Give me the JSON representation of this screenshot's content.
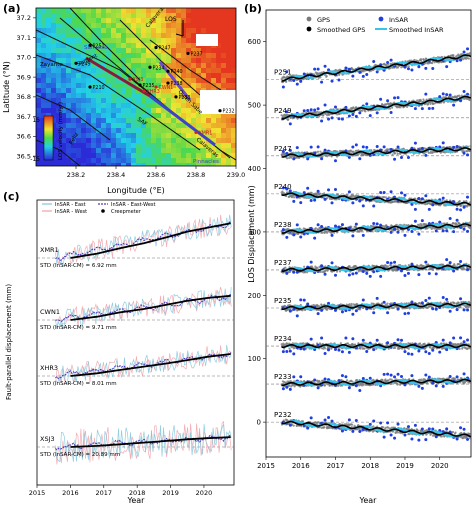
{
  "panels": {
    "a": {
      "label": "(a)",
      "xlabel": "Longitude (°E)",
      "ylabel": "Latitude (°N)",
      "xticks": [
        "238.2",
        "238.4",
        "238.6",
        "238.8",
        "239.0"
      ],
      "yticks": [
        "37.2",
        "37.1",
        "37.0",
        "36.9",
        "36.8",
        "36.7",
        "36.6",
        "36.5"
      ],
      "colorbar_label": "LOS velocity (mm/yr)",
      "colorbar_ticks": [
        "-15",
        "15"
      ],
      "los_label": "LOS",
      "fault_labels": [
        "Calaveras",
        "San Jose",
        "Sargent",
        "Zayante",
        "Quien Sabe",
        "SAF",
        "Reliz",
        "Calaveras"
      ],
      "stations": [
        "P251",
        "P249",
        "P247",
        "P240",
        "P238",
        "P237",
        "P235",
        "P234",
        "P233",
        "P232",
        "P210",
        "XMR1",
        "CWN1",
        "XHR3",
        "XSJ3",
        "Pinnacles"
      ]
    },
    "b": {
      "label": "(b)",
      "ylabel": "LOS Displacement (mm)",
      "xlabel": "Year",
      "legend": [
        "GPS",
        "Smoothed GPS",
        "InSAR",
        "Smoothed InSAR"
      ],
      "colors": {
        "gps": "#7a7a7a",
        "smoothed_gps": "#000000",
        "insar": "#1f3fe0",
        "smoothed_insar": "#38c4ea"
      }
    },
    "c": {
      "label": "(c)",
      "ylabel": "Fault-parallel displacement (mm)",
      "xlabel": "Year",
      "legend": [
        "InSAR - East",
        "InSAR - West",
        "InSAR - East-West",
        "Creepmeter"
      ],
      "colors": {
        "east": "#7fc6dc",
        "west": "#f0a0a8",
        "eastwest": "#4a3fb8",
        "creepmeter": "#000000"
      }
    }
  },
  "chart_data": [
    {
      "type": "scatter",
      "panel": "a",
      "title": "",
      "xlabel": "Longitude (°E)",
      "ylabel": "Latitude (°N)",
      "xlim": [
        238.0,
        239.0
      ],
      "ylim": [
        36.45,
        37.25
      ],
      "stations": [
        {
          "name": "P251",
          "x": 238.27,
          "y": 37.06
        },
        {
          "name": "P249",
          "x": 238.2,
          "y": 36.97
        },
        {
          "name": "P247",
          "x": 238.6,
          "y": 37.05
        },
        {
          "name": "P240",
          "x": 238.66,
          "y": 36.93
        },
        {
          "name": "P238",
          "x": 238.66,
          "y": 36.87
        },
        {
          "name": "P237",
          "x": 238.76,
          "y": 37.02
        },
        {
          "name": "P235",
          "x": 238.52,
          "y": 36.86
        },
        {
          "name": "P234",
          "x": 238.57,
          "y": 36.95
        },
        {
          "name": "P233",
          "x": 238.7,
          "y": 36.8
        },
        {
          "name": "P232",
          "x": 238.92,
          "y": 36.73
        },
        {
          "name": "P210",
          "x": 238.27,
          "y": 36.85
        },
        {
          "name": "XMR1",
          "x": 238.8,
          "y": 36.62
        },
        {
          "name": "CWN1",
          "x": 238.6,
          "y": 36.85
        },
        {
          "name": "XHR3",
          "x": 238.54,
          "y": 36.83
        },
        {
          "name": "XSJ3",
          "x": 238.47,
          "y": 36.89
        }
      ],
      "colorbar": {
        "label": "LOS velocity (mm/yr)",
        "min": -15,
        "max": 15
      }
    },
    {
      "type": "scatter",
      "panel": "b",
      "title": "",
      "xlabel": "Year",
      "ylabel": "LOS Displacement (mm)",
      "xlim": [
        2015,
        2020.9
      ],
      "ylim": [
        -55,
        650
      ],
      "xticks": [
        2015,
        2016,
        2017,
        2018,
        2019,
        2020
      ],
      "yticks": [
        0,
        100,
        200,
        300,
        400,
        500,
        600
      ],
      "series": [
        {
          "name": "P251",
          "offset": 540,
          "trend_mm_per_yr": 7.0
        },
        {
          "name": "P249",
          "offset": 480,
          "trend_mm_per_yr": 6.0
        },
        {
          "name": "P247",
          "offset": 420,
          "trend_mm_per_yr": 2.0
        },
        {
          "name": "P240",
          "offset": 360,
          "trend_mm_per_yr": -3.0
        },
        {
          "name": "P238",
          "offset": 300,
          "trend_mm_per_yr": 2.0
        },
        {
          "name": "P237",
          "offset": 240,
          "trend_mm_per_yr": 1.0
        },
        {
          "name": "P235",
          "offset": 180,
          "trend_mm_per_yr": 1.0
        },
        {
          "name": "P234",
          "offset": 120,
          "trend_mm_per_yr": 0.0
        },
        {
          "name": "P233",
          "offset": 60,
          "trend_mm_per_yr": 1.0
        },
        {
          "name": "P232",
          "offset": 0,
          "trend_mm_per_yr": -4.0
        }
      ]
    },
    {
      "type": "line",
      "panel": "c",
      "title": "",
      "xlabel": "Year",
      "ylabel": "Fault-parallel displacement (mm)",
      "xlim": [
        2015,
        2020.9
      ],
      "xticks": [
        2015,
        2016,
        2017,
        2018,
        2019,
        2020
      ],
      "series": [
        {
          "name": "XMR1",
          "std_label": "STD (InSAR-CM) = 6.92 mm",
          "creep_mm": [
            0,
            8,
            18,
            27,
            38,
            48,
            55,
            63
          ]
        },
        {
          "name": "CWN1",
          "std_label": "STD (InSAR-CM) = 9.71 mm",
          "creep_mm": [
            0,
            6,
            14,
            20,
            28,
            35,
            40,
            44
          ]
        },
        {
          "name": "XHR3",
          "std_label": "STD (InSAR-CM) = 8.01 mm",
          "creep_mm": [
            0,
            5,
            11,
            17,
            23,
            29,
            35,
            40
          ]
        },
        {
          "name": "XSJ3",
          "std_label": "STD (InSAR-CM) = 20.89 mm",
          "creep_mm": [
            0,
            2,
            5,
            8,
            11,
            14,
            16,
            18
          ]
        }
      ],
      "creep_years": [
        2016.0,
        2016.8,
        2017.5,
        2018.2,
        2018.9,
        2019.5,
        2020.1,
        2020.8
      ]
    }
  ]
}
